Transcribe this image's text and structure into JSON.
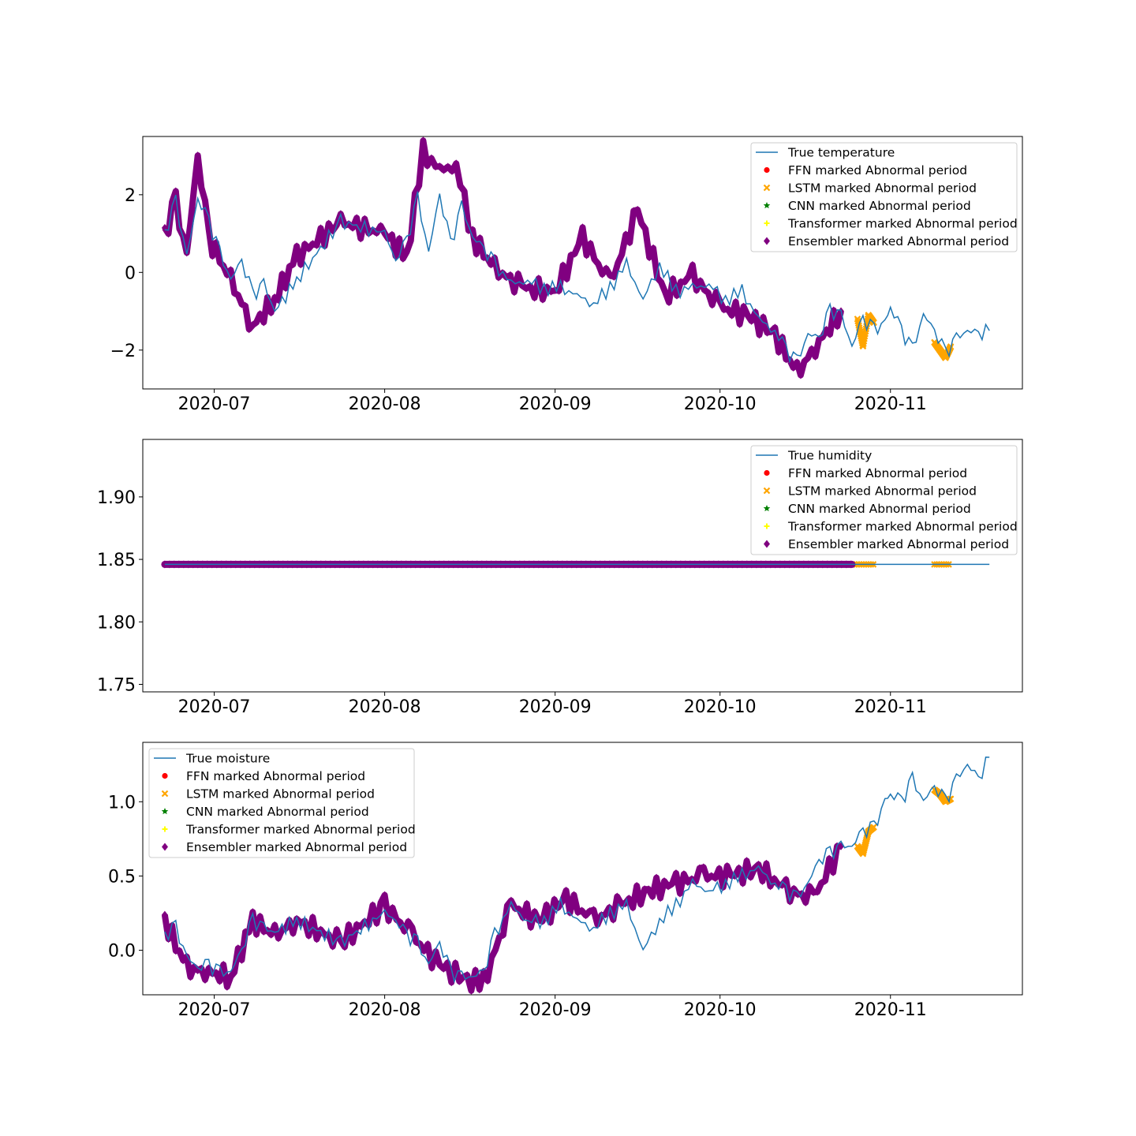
{
  "colors": {
    "true_line": "#1f77b4",
    "ffn": "#ff0000",
    "lstm": "#ffa500",
    "cnn": "#008000",
    "transformer": "#ffff00",
    "ensembler": "#800080"
  },
  "chart_data": [
    {
      "type": "line",
      "title": "",
      "xlabel": "",
      "ylabel": "",
      "x_axis": "date",
      "xlim": [
        "2020-06-18",
        "2020-11-25"
      ],
      "ylim": [
        -3.0,
        3.5
      ],
      "xticks": [
        "2020-07",
        "2020-08",
        "2020-09",
        "2020-10",
        "2020-11"
      ],
      "yticks": [
        -2,
        0,
        2
      ],
      "legend_position": "top-right",
      "legend": [
        "True temperature",
        "FFN marked Abnormal period",
        "LSTM marked Abnormal period",
        "CNN marked Abnormal period",
        "Transformer marked Abnormal period",
        "Ensembler marked Abnormal period"
      ],
      "series": [
        {
          "name": "True temperature",
          "style": "line",
          "x": [
            "2020-06-22",
            "2020-06-24",
            "2020-06-26",
            "2020-06-28",
            "2020-06-30",
            "2020-07-02",
            "2020-07-04",
            "2020-07-06",
            "2020-07-08",
            "2020-07-10",
            "2020-07-12",
            "2020-07-16",
            "2020-07-24",
            "2020-08-01",
            "2020-08-03",
            "2020-08-05",
            "2020-08-07",
            "2020-08-09",
            "2020-08-11",
            "2020-08-13",
            "2020-08-15",
            "2020-08-17",
            "2020-08-19",
            "2020-08-21",
            "2020-08-24",
            "2020-08-27",
            "2020-08-30",
            "2020-09-02",
            "2020-09-05",
            "2020-09-08",
            "2020-09-11",
            "2020-09-14",
            "2020-09-17",
            "2020-09-20",
            "2020-09-23",
            "2020-09-26",
            "2020-09-29",
            "2020-10-02",
            "2020-10-05",
            "2020-10-08",
            "2020-10-11",
            "2020-10-13",
            "2020-10-15",
            "2020-10-17",
            "2020-10-19",
            "2020-10-21",
            "2020-10-23",
            "2020-10-25",
            "2020-10-27",
            "2020-10-29",
            "2020-10-31",
            "2020-11-01",
            "2020-11-03",
            "2020-11-05",
            "2020-11-07",
            "2020-11-09",
            "2020-11-11",
            "2020-11-13",
            "2020-11-15",
            "2020-11-17",
            "2020-11-19"
          ],
          "y": [
            1.0,
            1.8,
            0.4,
            1.9,
            1.3,
            0.5,
            -0.2,
            0.3,
            -0.6,
            -0.3,
            -1.0,
            -0.2,
            1.3,
            1.0,
            0.3,
            0.8,
            1.9,
            0.5,
            2.0,
            0.7,
            1.7,
            0.9,
            0.6,
            0.2,
            -0.3,
            -0.2,
            -0.4,
            -0.4,
            -0.6,
            -0.8,
            -0.4,
            0.2,
            -0.7,
            0.2,
            -0.5,
            -0.4,
            -0.3,
            -0.7,
            -0.5,
            -1.2,
            -1.5,
            -2.0,
            -2.3,
            -1.6,
            -1.7,
            -1.0,
            -1.1,
            -1.9,
            -1.2,
            -1.5,
            -1.3,
            -0.9,
            -1.5,
            -2.0,
            -1.1,
            -1.5,
            -2.1,
            -1.7,
            -1.5,
            -1.6,
            -1.5
          ]
        },
        {
          "name": "LSTM marked Abnormal period",
          "style": "marker-x",
          "x": [
            "2020-10-26",
            "2020-10-27",
            "2020-10-28",
            "2020-10-29",
            "2020-11-09",
            "2020-11-10",
            "2020-11-11",
            "2020-11-12"
          ],
          "y": [
            -1.2,
            -1.9,
            -1.1,
            -1.3,
            -1.8,
            -2.0,
            -2.2,
            -1.9
          ]
        },
        {
          "name": "Ensembler marked Abnormal period",
          "style": "marker-diamond",
          "x": [
            "2020-06-22",
            "2020-06-24",
            "2020-06-26",
            "2020-06-28",
            "2020-06-30",
            "2020-07-04",
            "2020-07-08",
            "2020-07-12",
            "2020-07-16",
            "2020-07-24",
            "2020-08-01",
            "2020-08-05",
            "2020-08-08",
            "2020-08-11",
            "2020-08-14",
            "2020-08-17",
            "2020-08-21",
            "2020-08-26",
            "2020-09-01",
            "2020-09-06",
            "2020-09-11",
            "2020-09-16",
            "2020-09-21",
            "2020-09-26",
            "2020-10-01",
            "2020-10-06",
            "2020-10-11",
            "2020-10-15",
            "2020-10-19",
            "2020-10-23"
          ],
          "y": [
            1.0,
            1.8,
            0.4,
            3.0,
            0.9,
            -0.2,
            -1.4,
            -0.7,
            0.4,
            1.3,
            1.0,
            0.4,
            3.1,
            2.6,
            2.8,
            0.9,
            0.1,
            -0.4,
            -0.5,
            0.9,
            -0.3,
            1.6,
            -0.6,
            -0.1,
            -0.9,
            -1.1,
            -1.6,
            -2.6,
            -1.8,
            -1.0
          ]
        }
      ]
    },
    {
      "type": "line",
      "title": "",
      "xlabel": "",
      "ylabel": "",
      "x_axis": "date",
      "xlim": [
        "2020-06-18",
        "2020-11-25"
      ],
      "ylim": [
        1.744,
        1.946
      ],
      "xticks": [
        "2020-07",
        "2020-08",
        "2020-09",
        "2020-10",
        "2020-11"
      ],
      "yticks": [
        "1.75",
        "1.80",
        "1.85",
        "1.90"
      ],
      "legend_position": "top-right",
      "legend": [
        "True humidity",
        "FFN marked Abnormal period",
        "LSTM marked Abnormal period",
        "CNN marked Abnormal period",
        "Transformer marked Abnormal period",
        "Ensembler marked Abnormal period"
      ],
      "series": [
        {
          "name": "True humidity",
          "style": "line",
          "x": [
            "2020-06-22",
            "2020-11-19"
          ],
          "y": [
            1.846,
            1.846
          ]
        },
        {
          "name": "LSTM marked Abnormal period",
          "style": "band-x",
          "x": [
            "2020-10-25",
            "2020-10-29",
            "2020-11-09",
            "2020-11-12"
          ],
          "y": [
            1.846,
            1.846,
            1.846,
            1.846
          ]
        },
        {
          "name": "Ensembler marked Abnormal period",
          "style": "band-diamond",
          "x": [
            "2020-06-22",
            "2020-10-25"
          ],
          "y": [
            1.846,
            1.846
          ]
        }
      ]
    },
    {
      "type": "line",
      "title": "",
      "xlabel": "",
      "ylabel": "",
      "x_axis": "date",
      "xlim": [
        "2020-06-18",
        "2020-11-25"
      ],
      "ylim": [
        -0.3,
        1.4
      ],
      "xticks": [
        "2020-07",
        "2020-08",
        "2020-09",
        "2020-10",
        "2020-11"
      ],
      "yticks": [
        "0.0",
        "0.5",
        "1.0"
      ],
      "legend_position": "top-left",
      "legend": [
        "True moisture",
        "FFN marked Abnormal period",
        "LSTM marked Abnormal period",
        "CNN marked Abnormal period",
        "Transformer marked Abnormal period",
        "Ensembler marked Abnormal period"
      ],
      "series": [
        {
          "name": "True moisture",
          "style": "line",
          "x": [
            "2020-06-22",
            "2020-06-24",
            "2020-06-26",
            "2020-06-28",
            "2020-06-30",
            "2020-07-02",
            "2020-07-04",
            "2020-07-06",
            "2020-07-08",
            "2020-07-10",
            "2020-07-12",
            "2020-07-16",
            "2020-07-24",
            "2020-08-01",
            "2020-08-03",
            "2020-08-05",
            "2020-08-07",
            "2020-08-09",
            "2020-08-11",
            "2020-08-13",
            "2020-08-15",
            "2020-08-17",
            "2020-08-19",
            "2020-08-21",
            "2020-08-24",
            "2020-08-27",
            "2020-08-30",
            "2020-09-02",
            "2020-09-05",
            "2020-09-08",
            "2020-09-11",
            "2020-09-14",
            "2020-09-17",
            "2020-09-20",
            "2020-09-23",
            "2020-09-26",
            "2020-09-29",
            "2020-10-02",
            "2020-10-05",
            "2020-10-08",
            "2020-10-11",
            "2020-10-13",
            "2020-10-15",
            "2020-10-17",
            "2020-10-19",
            "2020-10-21",
            "2020-10-23",
            "2020-10-25",
            "2020-10-27",
            "2020-10-29",
            "2020-10-31",
            "2020-11-01",
            "2020-11-03",
            "2020-11-05",
            "2020-11-07",
            "2020-11-09",
            "2020-11-11",
            "2020-11-13",
            "2020-11-15",
            "2020-11-17",
            "2020-11-19"
          ],
          "y": [
            0.1,
            0.15,
            -0.05,
            -0.12,
            -0.1,
            -0.15,
            -0.15,
            0.0,
            0.2,
            0.15,
            0.12,
            0.2,
            0.05,
            0.25,
            0.2,
            0.1,
            0.05,
            -0.1,
            0.05,
            -0.15,
            -0.18,
            -0.18,
            -0.15,
            0.1,
            0.3,
            0.2,
            0.2,
            0.3,
            0.2,
            0.15,
            0.25,
            0.3,
            0.0,
            0.2,
            0.3,
            0.45,
            0.4,
            0.45,
            0.5,
            0.55,
            0.45,
            0.4,
            0.35,
            0.45,
            0.6,
            0.65,
            0.7,
            0.7,
            0.8,
            0.82,
            1.0,
            1.05,
            1.0,
            1.15,
            1.0,
            1.1,
            1.0,
            1.15,
            1.25,
            1.15,
            1.3
          ]
        },
        {
          "name": "LSTM marked Abnormal period",
          "style": "marker-x",
          "x": [
            "2020-10-26",
            "2020-10-27",
            "2020-10-28",
            "2020-10-29",
            "2020-11-09",
            "2020-11-10",
            "2020-11-11",
            "2020-11-12"
          ],
          "y": [
            0.7,
            0.65,
            0.8,
            0.83,
            1.08,
            1.05,
            1.0,
            1.02
          ]
        },
        {
          "name": "Ensembler marked Abnormal period",
          "style": "marker-diamond",
          "x": [
            "2020-06-22",
            "2020-06-26",
            "2020-06-30",
            "2020-07-04",
            "2020-07-08",
            "2020-07-12",
            "2020-07-16",
            "2020-07-24",
            "2020-08-01",
            "2020-08-06",
            "2020-08-11",
            "2020-08-16",
            "2020-08-19",
            "2020-08-24",
            "2020-08-29",
            "2020-09-03",
            "2020-09-08",
            "2020-09-13",
            "2020-09-18",
            "2020-09-23",
            "2020-09-28",
            "2020-10-03",
            "2020-10-08",
            "2020-10-13",
            "2020-10-18",
            "2020-10-23"
          ],
          "y": [
            0.2,
            -0.12,
            -0.15,
            -0.18,
            0.2,
            0.1,
            0.2,
            0.05,
            0.3,
            0.1,
            -0.1,
            -0.2,
            -0.22,
            0.3,
            0.2,
            0.35,
            0.2,
            0.3,
            0.4,
            0.45,
            0.5,
            0.5,
            0.55,
            0.4,
            0.35,
            0.7
          ]
        }
      ]
    }
  ]
}
